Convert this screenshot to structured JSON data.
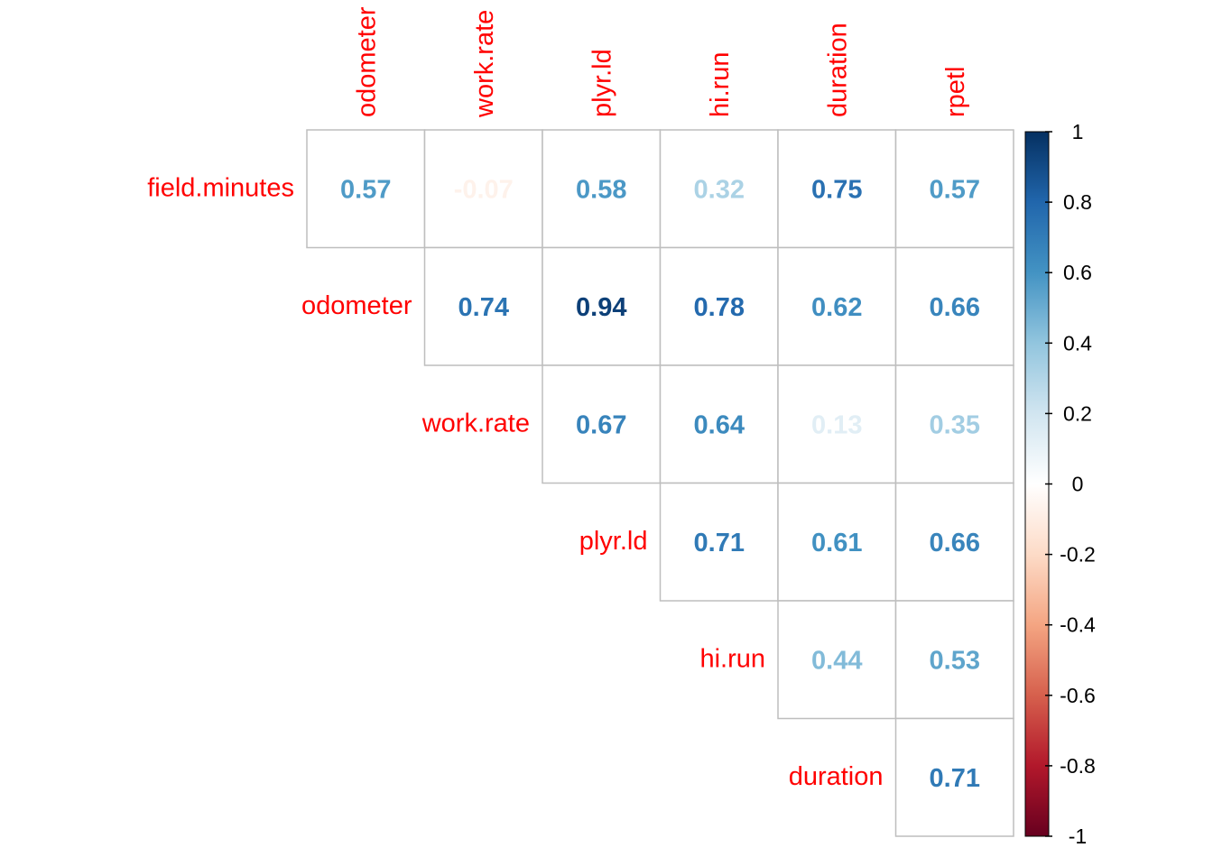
{
  "chart_data": {
    "type": "heatmap",
    "layout": "upper-triangle",
    "row_labels": [
      "field.minutes",
      "odometer",
      "work.rate",
      "plyr.ld",
      "hi.run",
      "duration"
    ],
    "col_labels": [
      "odometer",
      "work.rate",
      "plyr.ld",
      "hi.run",
      "duration",
      "rpetl"
    ],
    "values": [
      [
        0.57,
        -0.07,
        0.58,
        0.32,
        0.75,
        0.57
      ],
      [
        null,
        0.74,
        0.94,
        0.78,
        0.62,
        0.66
      ],
      [
        null,
        null,
        0.67,
        0.64,
        0.13,
        0.35
      ],
      [
        null,
        null,
        null,
        0.71,
        0.61,
        0.66
      ],
      [
        null,
        null,
        null,
        null,
        0.44,
        0.53
      ],
      [
        null,
        null,
        null,
        null,
        null,
        0.71
      ]
    ],
    "value_labels": [
      [
        "0.57",
        "-0.07",
        "0.58",
        "0.32",
        "0.75",
        "0.57"
      ],
      [
        null,
        "0.74",
        "0.94",
        "0.78",
        "0.62",
        "0.66"
      ],
      [
        null,
        null,
        "0.67",
        "0.64",
        "0.13",
        "0.35"
      ],
      [
        null,
        null,
        null,
        "0.71",
        "0.61",
        "0.66"
      ],
      [
        null,
        null,
        null,
        null,
        "0.44",
        "0.53"
      ],
      [
        null,
        null,
        null,
        null,
        null,
        "0.71"
      ]
    ],
    "color_scale": {
      "range": [
        -1,
        1
      ],
      "ticks": [
        1,
        0.8,
        0.6,
        0.4,
        0.2,
        0,
        -0.2,
        -0.4,
        -0.6,
        -0.8,
        -1
      ],
      "tick_labels": [
        "1",
        "0.8",
        "0.6",
        "0.4",
        "0.2",
        "0",
        "-0.2",
        "-0.4",
        "-0.6",
        "-0.8",
        "-1"
      ],
      "colors": [
        "#67001f",
        "#b2182b",
        "#d6604d",
        "#f4a582",
        "#fddbc7",
        "#ffffff",
        "#d1e5f0",
        "#92c5de",
        "#4393c3",
        "#2166ac",
        "#053061"
      ]
    },
    "label_color": "#ff0000",
    "grid_color": "#bebebe",
    "legend_position": "right"
  }
}
